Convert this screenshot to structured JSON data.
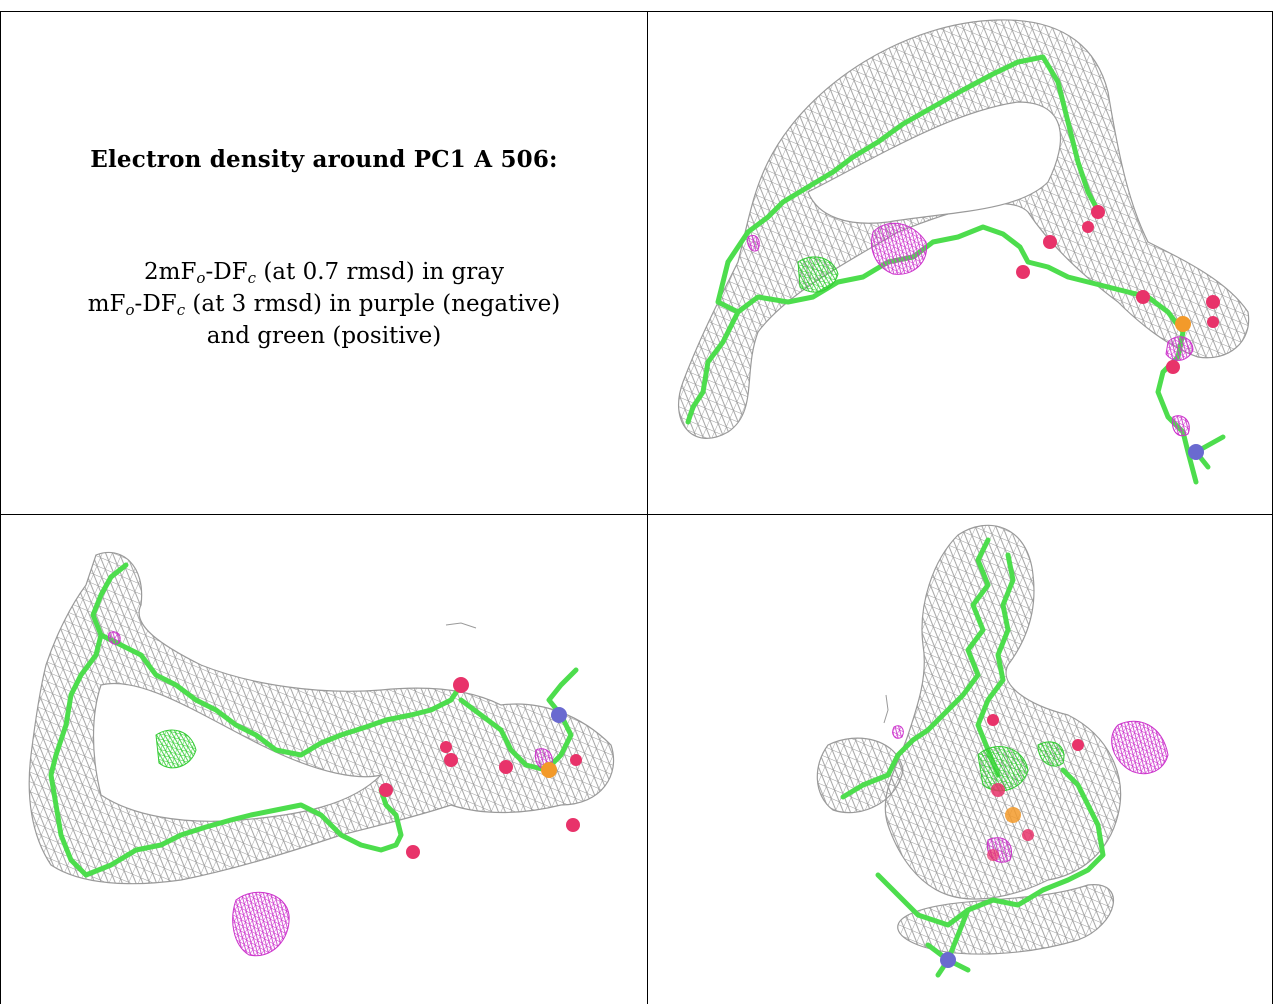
{
  "figure": {
    "title": "Electron density around PC1 A 506:",
    "legend": {
      "line1": {
        "prefix": "2mF",
        "sub1": "o",
        "mid": "-DF",
        "sub2": "c",
        "suffix": " (at 0.7 rmsd) in gray"
      },
      "line2": {
        "prefix": "mF",
        "sub1": "o",
        "mid": "-DF",
        "sub2": "c",
        "suffix": " (at 3 rmsd) in purple (negative)"
      },
      "line3": {
        "text": "and green (positive)"
      }
    },
    "colors": {
      "mesh_2fofc": "#9a9a9a",
      "mesh_negative": "#cc33cc",
      "mesh_positive": "#33cc33",
      "carbon": "#4ddd4d",
      "oxygen": "#e8336a",
      "phosphorus": "#f39a2a",
      "nitrogen": "#6a6ad0"
    },
    "panels": [
      {
        "id": "view-1",
        "content": "ligand-density-view"
      },
      {
        "id": "view-2",
        "content": "ligand-density-view"
      },
      {
        "id": "view-3",
        "content": "ligand-density-view"
      }
    ]
  }
}
